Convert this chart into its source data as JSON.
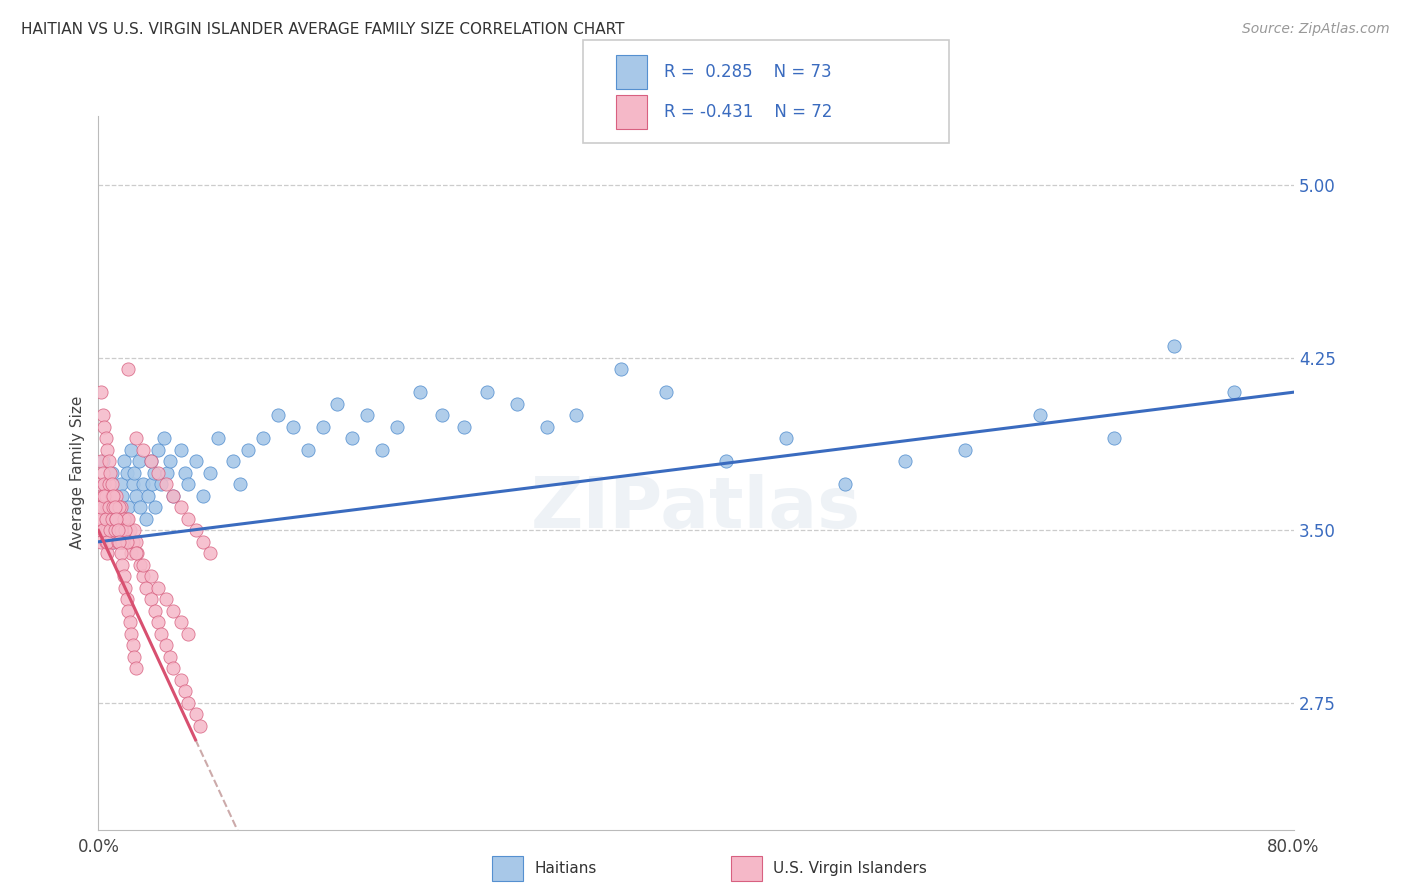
{
  "title": "HAITIAN VS U.S. VIRGIN ISLANDER AVERAGE FAMILY SIZE CORRELATION CHART",
  "source": "Source: ZipAtlas.com",
  "ylabel": "Average Family Size",
  "yticks": [
    2.75,
    3.5,
    4.25,
    5.0
  ],
  "ytick_labels": [
    "2.75",
    "3.50",
    "4.25",
    "5.00"
  ],
  "xlim": [
    0.0,
    0.8
  ],
  "ylim": [
    2.2,
    5.3
  ],
  "haitian_R": 0.285,
  "haitian_N": 73,
  "usvi_R": -0.431,
  "usvi_N": 72,
  "haitian_color": "#a8c8e8",
  "usvi_color": "#f5b8c8",
  "haitian_edge": "#5590d0",
  "usvi_edge": "#d86080",
  "trend_blue": "#3a6bbf",
  "trend_pink": "#d85070",
  "trend_dashed_color": "#ccaaaa",
  "background_color": "#ffffff",
  "haitian_x": [
    0.003,
    0.004,
    0.005,
    0.006,
    0.007,
    0.008,
    0.009,
    0.01,
    0.011,
    0.013,
    0.015,
    0.016,
    0.017,
    0.018,
    0.019,
    0.02,
    0.022,
    0.023,
    0.024,
    0.025,
    0.027,
    0.028,
    0.03,
    0.032,
    0.033,
    0.035,
    0.036,
    0.037,
    0.038,
    0.04,
    0.042,
    0.044,
    0.046,
    0.048,
    0.05,
    0.055,
    0.058,
    0.06,
    0.065,
    0.07,
    0.075,
    0.08,
    0.09,
    0.095,
    0.1,
    0.11,
    0.12,
    0.13,
    0.14,
    0.15,
    0.16,
    0.17,
    0.18,
    0.19,
    0.2,
    0.215,
    0.23,
    0.245,
    0.26,
    0.28,
    0.3,
    0.32,
    0.35,
    0.38,
    0.42,
    0.46,
    0.5,
    0.54,
    0.58,
    0.63,
    0.68,
    0.72,
    0.76
  ],
  "haitian_y": [
    3.8,
    3.7,
    3.6,
    3.55,
    3.65,
    3.5,
    3.75,
    3.45,
    3.55,
    3.6,
    3.7,
    3.65,
    3.8,
    3.55,
    3.75,
    3.6,
    3.85,
    3.7,
    3.75,
    3.65,
    3.8,
    3.6,
    3.7,
    3.55,
    3.65,
    3.8,
    3.7,
    3.75,
    3.6,
    3.85,
    3.7,
    3.9,
    3.75,
    3.8,
    3.65,
    3.85,
    3.75,
    3.7,
    3.8,
    3.65,
    3.75,
    3.9,
    3.8,
    3.7,
    3.85,
    3.9,
    4.0,
    3.95,
    3.85,
    3.95,
    4.05,
    3.9,
    4.0,
    3.85,
    3.95,
    4.1,
    4.0,
    3.95,
    4.1,
    4.05,
    3.95,
    4.0,
    4.2,
    4.1,
    3.8,
    3.9,
    3.7,
    3.8,
    3.85,
    4.0,
    3.9,
    4.3,
    4.1
  ],
  "usvi_x": [
    0.001,
    0.001,
    0.002,
    0.002,
    0.002,
    0.003,
    0.003,
    0.003,
    0.004,
    0.004,
    0.004,
    0.005,
    0.005,
    0.005,
    0.006,
    0.006,
    0.006,
    0.007,
    0.007,
    0.008,
    0.008,
    0.009,
    0.009,
    0.01,
    0.01,
    0.011,
    0.011,
    0.012,
    0.012,
    0.013,
    0.014,
    0.015,
    0.015,
    0.016,
    0.016,
    0.017,
    0.018,
    0.019,
    0.02,
    0.021,
    0.022,
    0.023,
    0.024,
    0.025,
    0.026,
    0.028,
    0.03,
    0.032,
    0.035,
    0.038,
    0.04,
    0.042,
    0.045,
    0.048,
    0.05,
    0.055,
    0.058,
    0.06,
    0.065,
    0.068,
    0.02,
    0.025,
    0.03,
    0.035,
    0.04,
    0.045,
    0.05,
    0.055,
    0.06,
    0.065,
    0.07,
    0.075
  ],
  "usvi_y": [
    3.5,
    3.7,
    3.6,
    3.45,
    3.8,
    3.55,
    3.65,
    3.75,
    3.5,
    3.6,
    3.7,
    3.45,
    3.55,
    3.65,
    3.5,
    3.6,
    3.4,
    3.55,
    3.7,
    3.45,
    3.6,
    3.5,
    3.65,
    3.55,
    3.45,
    3.6,
    3.5,
    3.55,
    3.65,
    3.5,
    3.55,
    3.45,
    3.6,
    3.5,
    3.55,
    3.45,
    3.5,
    3.55,
    3.45,
    3.5,
    3.4,
    3.45,
    3.5,
    3.45,
    3.4,
    3.35,
    3.3,
    3.25,
    3.2,
    3.15,
    3.1,
    3.05,
    3.0,
    2.95,
    2.9,
    2.85,
    2.8,
    2.75,
    2.7,
    2.65,
    4.2,
    3.9,
    3.85,
    3.8,
    3.75,
    3.7,
    3.65,
    3.6,
    3.55,
    3.5,
    3.45,
    3.4
  ],
  "usvi_extra_x": [
    0.001,
    0.002,
    0.003,
    0.004,
    0.005,
    0.006,
    0.007,
    0.008,
    0.009,
    0.01,
    0.011,
    0.012,
    0.013,
    0.014,
    0.015,
    0.016,
    0.017,
    0.018,
    0.019,
    0.02,
    0.025,
    0.03,
    0.035,
    0.04,
    0.045,
    0.05,
    0.055,
    0.06,
    0.002,
    0.003,
    0.004,
    0.005,
    0.006,
    0.007,
    0.008,
    0.009,
    0.01,
    0.011,
    0.012,
    0.013,
    0.014,
    0.015,
    0.016,
    0.017,
    0.018,
    0.019,
    0.02,
    0.021,
    0.022,
    0.023,
    0.024,
    0.025
  ],
  "usvi_extra_y": [
    3.55,
    3.6,
    3.5,
    3.65,
    3.55,
    3.45,
    3.6,
    3.5,
    3.55,
    3.6,
    3.5,
    3.55,
    3.45,
    3.6,
    3.5,
    3.45,
    3.55,
    3.5,
    3.45,
    3.55,
    3.4,
    3.35,
    3.3,
    3.25,
    3.2,
    3.15,
    3.1,
    3.05,
    4.1,
    4.0,
    3.95,
    3.9,
    3.85,
    3.8,
    3.75,
    3.7,
    3.65,
    3.6,
    3.55,
    3.5,
    3.45,
    3.4,
    3.35,
    3.3,
    3.25,
    3.2,
    3.15,
    3.1,
    3.05,
    3.0,
    2.95,
    2.9
  ]
}
